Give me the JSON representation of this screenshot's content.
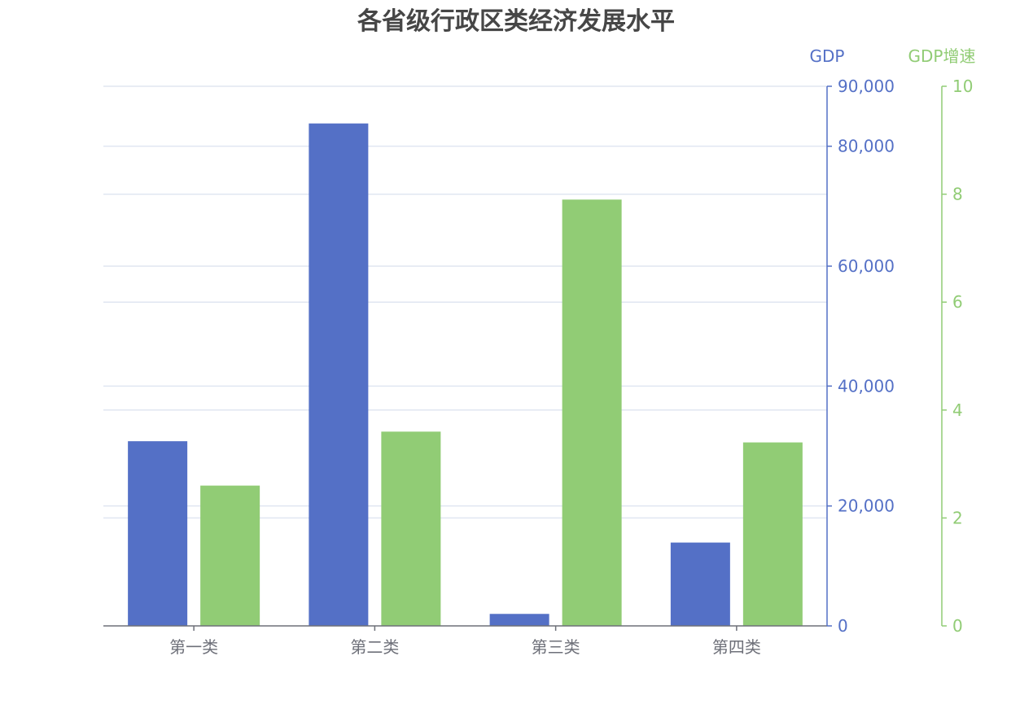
{
  "chart_data": {
    "type": "bar",
    "title": "各省级行政区类经济发展水平",
    "categories": [
      "第一类",
      "第二类",
      "第三类",
      "第四类"
    ],
    "series": [
      {
        "name": "GDP",
        "axis": "gdp",
        "color": "#5470C6",
        "values": [
          30800,
          83800,
          2000,
          13900
        ]
      },
      {
        "name": "GDP增速",
        "axis": "growth",
        "color": "#91CC75",
        "values": [
          2.6,
          3.6,
          7.9,
          3.4
        ]
      }
    ],
    "axes": {
      "gdp": {
        "name": "GDP",
        "range": [
          0,
          90000
        ],
        "ticks": [
          "0",
          "20,000",
          "40,000",
          "60,000",
          "80,000",
          "90,000"
        ],
        "tick_values": [
          0,
          20000,
          40000,
          60000,
          80000,
          90000
        ],
        "color": "#5470C6"
      },
      "growth": {
        "name": "GDP增速",
        "range": [
          0,
          10
        ],
        "ticks": [
          "0",
          "2",
          "4",
          "6",
          "8",
          "10"
        ],
        "tick_values": [
          0,
          2,
          4,
          6,
          8,
          10
        ],
        "color": "#91CC75"
      }
    },
    "grid": true,
    "colors": {
      "gridline": "#E0E6F1",
      "category_axis": "#6E7079",
      "title": "#464646"
    }
  }
}
